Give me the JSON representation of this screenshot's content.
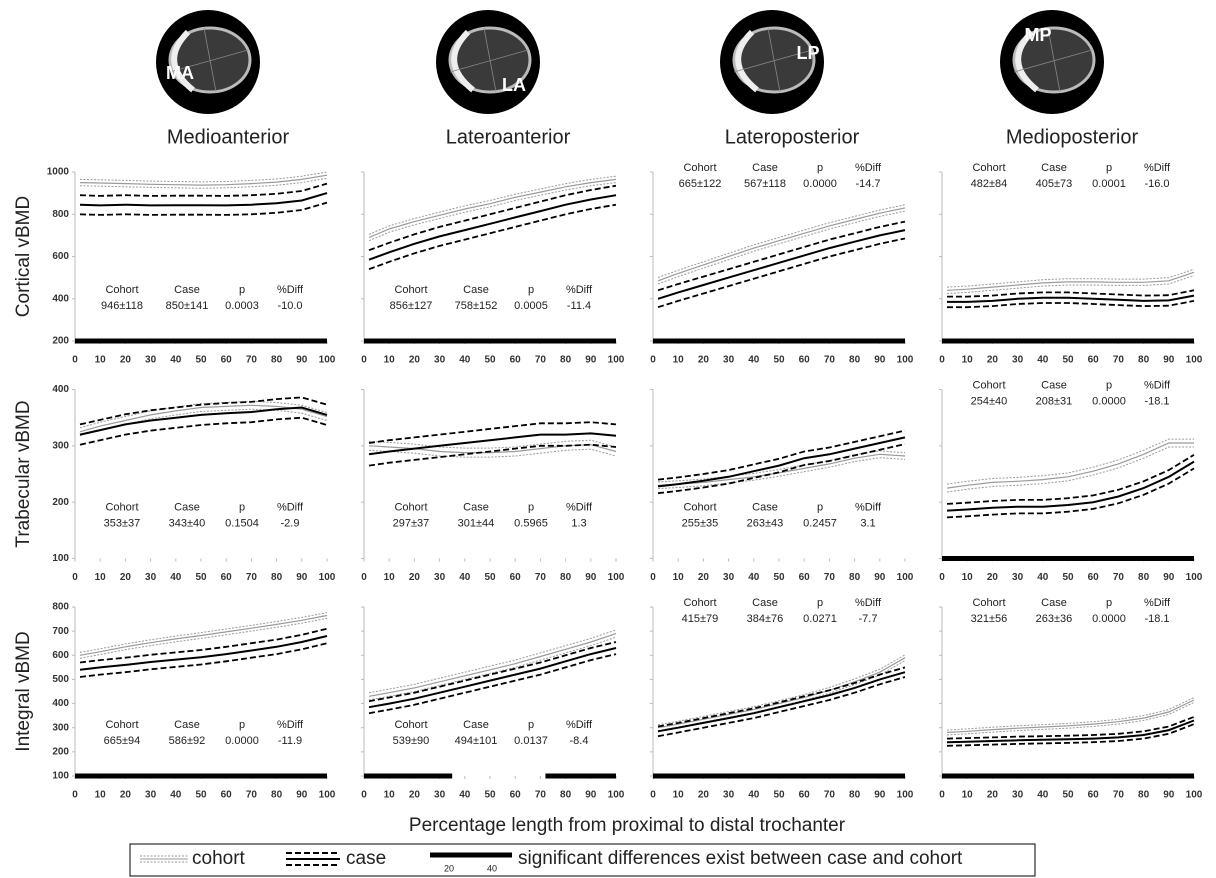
{
  "regions": [
    {
      "title": "Medioanterior",
      "label": "MA"
    },
    {
      "title": "Lateroanterior",
      "label": "LA"
    },
    {
      "title": "Lateroposterior",
      "label": "LP"
    },
    {
      "title": "Medioposterior",
      "label": "MP"
    }
  ],
  "xlabel": "Percentage length from proximal to distal trochanter",
  "stats_headers": [
    "Cohort",
    "Case",
    "p",
    "%Diff"
  ],
  "legend": {
    "significance": "significant differences exist between case and cohort",
    "scale": [
      20,
      40
    ]
  },
  "chart_data": [
    {
      "type": "line",
      "ylabel": "Cortical vBMD",
      "x": [
        2,
        10,
        20,
        30,
        40,
        50,
        60,
        70,
        80,
        90,
        100
      ],
      "xlim": [
        0,
        100
      ],
      "xticks": [
        0,
        10,
        20,
        30,
        40,
        50,
        60,
        70,
        80,
        90,
        100
      ],
      "ylim": [
        200,
        1000
      ],
      "yticks": [
        200,
        400,
        600,
        800,
        1000
      ],
      "series": [
        {
          "name": "cohort",
          "color": "#9a9a9a",
          "values": [
            950,
            948,
            945,
            942,
            940,
            938,
            940,
            945,
            952,
            965,
            985
          ],
          "ci": 15
        },
        {
          "name": "case",
          "color": "#000000",
          "values": [
            845,
            842,
            845,
            842,
            843,
            843,
            842,
            845,
            852,
            865,
            900
          ],
          "ci": 45
        }
      ],
      "significant": [
        [
          0,
          100
        ]
      ],
      "stats": {
        "cohort": "946±118",
        "case": "850±141",
        "p": "0.0003",
        "diff": "-10.0"
      },
      "stats_position": "bottom"
    },
    {
      "type": "line",
      "x": [
        2,
        10,
        20,
        30,
        40,
        50,
        60,
        70,
        80,
        90,
        100
      ],
      "xlim": [
        0,
        100
      ],
      "xticks": [
        0,
        10,
        20,
        30,
        40,
        50,
        60,
        70,
        80,
        90,
        100
      ],
      "ylim": [
        200,
        1000
      ],
      "yticks": [
        200,
        400,
        600,
        800,
        1000
      ],
      "series": [
        {
          "name": "cohort",
          "color": "#9a9a9a",
          "values": [
            690,
            730,
            765,
            795,
            825,
            850,
            880,
            905,
            930,
            950,
            965
          ],
          "ci": 15
        },
        {
          "name": "case",
          "color": "#000000",
          "values": [
            585,
            620,
            660,
            695,
            725,
            755,
            785,
            815,
            845,
            870,
            890
          ],
          "ci": 45
        }
      ],
      "significant": [
        [
          0,
          100
        ]
      ],
      "stats": {
        "cohort": "856±127",
        "case": "758±152",
        "p": "0.0005",
        "diff": "-11.4"
      },
      "stats_position": "bottom"
    },
    {
      "type": "line",
      "x": [
        2,
        10,
        20,
        30,
        40,
        50,
        60,
        70,
        80,
        90,
        100
      ],
      "xlim": [
        0,
        100
      ],
      "xticks": [
        0,
        10,
        20,
        30,
        40,
        50,
        60,
        70,
        80,
        90,
        100
      ],
      "ylim": [
        200,
        1000
      ],
      "yticks": [
        200,
        400,
        600,
        800,
        1000
      ],
      "series": [
        {
          "name": "cohort",
          "color": "#9a9a9a",
          "values": [
            485,
            520,
            560,
            600,
            640,
            675,
            710,
            745,
            775,
            805,
            830
          ],
          "ci": 15
        },
        {
          "name": "case",
          "color": "#000000",
          "values": [
            400,
            430,
            465,
            500,
            535,
            570,
            605,
            640,
            670,
            700,
            725
          ],
          "ci": 40
        }
      ],
      "significant": [
        [
          0,
          100
        ]
      ],
      "stats": {
        "cohort": "665±122",
        "case": "567±118",
        "p": "0.0000",
        "diff": "-14.7"
      },
      "stats_position": "top"
    },
    {
      "type": "line",
      "x": [
        2,
        10,
        20,
        30,
        40,
        50,
        60,
        70,
        80,
        90,
        100
      ],
      "xlim": [
        0,
        100
      ],
      "xticks": [
        0,
        10,
        20,
        30,
        40,
        50,
        60,
        70,
        80,
        90,
        100
      ],
      "ylim": [
        200,
        1000
      ],
      "yticks": [
        200,
        400,
        600,
        800,
        1000
      ],
      "series": [
        {
          "name": "cohort",
          "color": "#9a9a9a",
          "values": [
            440,
            445,
            455,
            465,
            475,
            480,
            480,
            478,
            478,
            485,
            525
          ],
          "ci": 15
        },
        {
          "name": "case",
          "color": "#000000",
          "values": [
            385,
            385,
            390,
            400,
            405,
            405,
            400,
            395,
            390,
            392,
            415
          ],
          "ci": 25
        }
      ],
      "significant": [
        [
          0,
          100
        ]
      ],
      "stats": {
        "cohort": "482±84",
        "case": "405±73",
        "p": "0.0001",
        "diff": "-16.0"
      },
      "stats_position": "top"
    },
    {
      "type": "line",
      "ylabel": "Trabecular vBMD",
      "x": [
        2,
        10,
        20,
        30,
        40,
        50,
        60,
        70,
        80,
        90,
        100
      ],
      "xlim": [
        0,
        100
      ],
      "xticks": [
        0,
        10,
        20,
        30,
        40,
        50,
        60,
        70,
        80,
        90,
        100
      ],
      "ylim": [
        100,
        400
      ],
      "yticks": [
        100,
        200,
        300,
        400
      ],
      "series": [
        {
          "name": "cohort",
          "color": "#9a9a9a",
          "values": [
            325,
            335,
            345,
            355,
            362,
            368,
            370,
            372,
            370,
            365,
            352
          ],
          "ci": 7
        },
        {
          "name": "case",
          "color": "#000000",
          "values": [
            320,
            328,
            338,
            345,
            350,
            355,
            358,
            360,
            365,
            368,
            355
          ],
          "ci": 18
        }
      ],
      "significant": [],
      "stats": {
        "cohort": "353±37",
        "case": "343±40",
        "p": "0.1504",
        "diff": "-2.9"
      },
      "stats_position": "bottom"
    },
    {
      "type": "line",
      "x": [
        2,
        10,
        20,
        30,
        40,
        50,
        60,
        70,
        80,
        90,
        100
      ],
      "xlim": [
        0,
        100
      ],
      "xticks": [
        0,
        10,
        20,
        30,
        40,
        50,
        60,
        70,
        80,
        90,
        100
      ],
      "ylim": [
        100,
        400
      ],
      "yticks": [
        100,
        200,
        300,
        400
      ],
      "series": [
        {
          "name": "cohort",
          "color": "#9a9a9a",
          "values": [
            300,
            298,
            295,
            290,
            288,
            288,
            290,
            295,
            300,
            302,
            290
          ],
          "ci": 8
        },
        {
          "name": "case",
          "color": "#000000",
          "values": [
            285,
            290,
            295,
            300,
            305,
            310,
            315,
            320,
            320,
            322,
            318
          ],
          "ci": 20
        }
      ],
      "significant": [],
      "stats": {
        "cohort": "297±37",
        "case": "301±44",
        "p": "0.5965",
        "diff": "1.3"
      },
      "stats_position": "bottom"
    },
    {
      "type": "line",
      "x": [
        2,
        10,
        20,
        30,
        40,
        50,
        60,
        70,
        80,
        90,
        100
      ],
      "xlim": [
        0,
        100
      ],
      "xticks": [
        0,
        10,
        20,
        30,
        40,
        50,
        60,
        70,
        80,
        90,
        100
      ],
      "ylim": [
        100,
        400
      ],
      "yticks": [
        100,
        200,
        300,
        400
      ],
      "series": [
        {
          "name": "cohort",
          "color": "#9a9a9a",
          "values": [
            230,
            232,
            235,
            240,
            245,
            252,
            260,
            268,
            278,
            285,
            282
          ],
          "ci": 6
        },
        {
          "name": "case",
          "color": "#000000",
          "values": [
            228,
            232,
            238,
            245,
            255,
            265,
            278,
            285,
            295,
            305,
            315
          ],
          "ci": 12
        }
      ],
      "significant": [],
      "stats": {
        "cohort": "255±35",
        "case": "263±43",
        "p": "0.2457",
        "diff": "3.1"
      },
      "stats_position": "bottom"
    },
    {
      "type": "line",
      "x": [
        2,
        10,
        20,
        30,
        40,
        50,
        60,
        70,
        80,
        90,
        100
      ],
      "xlim": [
        0,
        100
      ],
      "xticks": [
        0,
        10,
        20,
        30,
        40,
        50,
        60,
        70,
        80,
        90,
        100
      ],
      "ylim": [
        100,
        400
      ],
      "yticks": [
        100,
        200,
        300,
        400
      ],
      "series": [
        {
          "name": "cohort",
          "color": "#9a9a9a",
          "values": [
            225,
            230,
            235,
            237,
            240,
            245,
            255,
            268,
            285,
            305,
            305
          ],
          "ci": 7
        },
        {
          "name": "case",
          "color": "#000000",
          "values": [
            185,
            187,
            190,
            192,
            192,
            195,
            200,
            210,
            225,
            245,
            272
          ],
          "ci": 12
        }
      ],
      "significant": [
        [
          0,
          100
        ]
      ],
      "stats": {
        "cohort": "254±40",
        "case": "208±31",
        "p": "0.0000",
        "diff": "-18.1"
      },
      "stats_position": "top"
    },
    {
      "type": "line",
      "ylabel": "Integral vBMD",
      "x": [
        2,
        10,
        20,
        30,
        40,
        50,
        60,
        70,
        80,
        90,
        100
      ],
      "xlim": [
        0,
        100
      ],
      "xticks": [
        0,
        10,
        20,
        30,
        40,
        50,
        60,
        70,
        80,
        90,
        100
      ],
      "ylim": [
        100,
        800
      ],
      "yticks": [
        100,
        200,
        300,
        400,
        500,
        600,
        700,
        800
      ],
      "series": [
        {
          "name": "cohort",
          "color": "#9a9a9a",
          "values": [
            600,
            615,
            635,
            652,
            668,
            682,
            697,
            712,
            728,
            745,
            765
          ],
          "ci": 12
        },
        {
          "name": "case",
          "color": "#000000",
          "values": [
            540,
            550,
            560,
            572,
            582,
            592,
            605,
            620,
            635,
            655,
            680
          ],
          "ci": 30
        }
      ],
      "significant": [
        [
          0,
          100
        ]
      ],
      "stats": {
        "cohort": "665±94",
        "case": "586±92",
        "p": "0.0000",
        "diff": "-11.9"
      },
      "stats_position": "bottom"
    },
    {
      "type": "line",
      "x": [
        2,
        10,
        20,
        30,
        40,
        50,
        60,
        70,
        80,
        90,
        100
      ],
      "xlim": [
        0,
        100
      ],
      "xticks": [
        0,
        10,
        20,
        30,
        40,
        50,
        60,
        70,
        80,
        90,
        100
      ],
      "ylim": [
        100,
        800
      ],
      "yticks": [
        100,
        200,
        300,
        400,
        500,
        600,
        700,
        800
      ],
      "series": [
        {
          "name": "cohort",
          "color": "#9a9a9a",
          "values": [
            430,
            445,
            465,
            490,
            515,
            540,
            565,
            595,
            625,
            655,
            690
          ],
          "ci": 15
        },
        {
          "name": "case",
          "color": "#000000",
          "values": [
            385,
            400,
            420,
            445,
            470,
            495,
            520,
            545,
            575,
            605,
            630
          ],
          "ci": 25
        }
      ],
      "significant": [
        [
          0,
          35
        ],
        [
          72,
          100
        ]
      ],
      "stats": {
        "cohort": "539±90",
        "case": "494±101",
        "p": "0.0137",
        "diff": "-8.4"
      },
      "stats_position": "bottom"
    },
    {
      "type": "line",
      "x": [
        2,
        10,
        20,
        30,
        40,
        50,
        60,
        70,
        80,
        90,
        100
      ],
      "xlim": [
        0,
        100
      ],
      "xticks": [
        0,
        10,
        20,
        30,
        40,
        50,
        60,
        70,
        80,
        90,
        100
      ],
      "ylim": [
        100,
        800
      ],
      "yticks": [
        100,
        200,
        300,
        400,
        500,
        600,
        700,
        800
      ],
      "series": [
        {
          "name": "cohort",
          "color": "#9a9a9a",
          "values": [
            300,
            315,
            335,
            355,
            375,
            400,
            425,
            455,
            490,
            530,
            590
          ],
          "ci": 12
        },
        {
          "name": "case",
          "color": "#000000",
          "values": [
            285,
            300,
            320,
            340,
            360,
            385,
            410,
            435,
            465,
            500,
            530
          ],
          "ci": 20
        }
      ],
      "significant": [
        [
          0,
          100
        ]
      ],
      "stats": {
        "cohort": "415±79",
        "case": "384±76",
        "p": "0.0271",
        "diff": "-7.7"
      },
      "stats_position": "top"
    },
    {
      "type": "line",
      "x": [
        2,
        10,
        20,
        30,
        40,
        50,
        60,
        70,
        80,
        90,
        100
      ],
      "xlim": [
        0,
        100
      ],
      "xticks": [
        0,
        10,
        20,
        30,
        40,
        50,
        60,
        70,
        80,
        90,
        100
      ],
      "ylim": [
        100,
        800
      ],
      "yticks": [
        100,
        200,
        300,
        400,
        500,
        600,
        700,
        800
      ],
      "series": [
        {
          "name": "cohort",
          "color": "#9a9a9a",
          "values": [
            280,
            285,
            292,
            298,
            303,
            308,
            315,
            325,
            340,
            365,
            415
          ],
          "ci": 10
        },
        {
          "name": "case",
          "color": "#000000",
          "values": [
            240,
            242,
            245,
            248,
            250,
            252,
            255,
            260,
            270,
            290,
            330
          ],
          "ci": 15
        }
      ],
      "significant": [
        [
          0,
          100
        ]
      ],
      "stats": {
        "cohort": "321±56",
        "case": "263±36",
        "p": "0.0000",
        "diff": "-18.1"
      },
      "stats_position": "top"
    }
  ]
}
